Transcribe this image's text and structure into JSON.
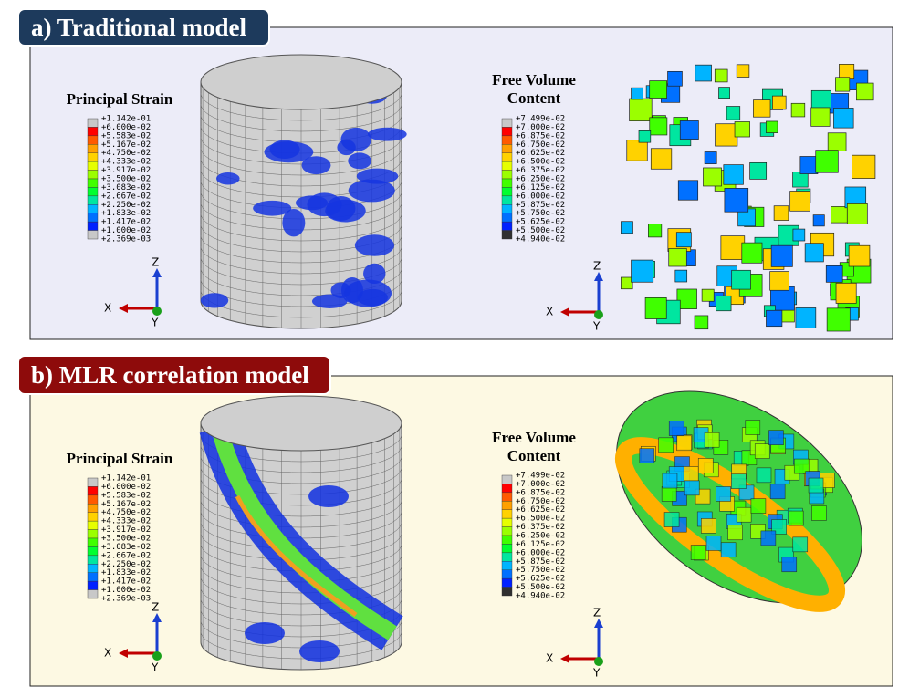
{
  "panels": [
    {
      "title": "a) Traditional model",
      "strain_legend": {
        "title": "Principal Strain",
        "labels": [
          "+1.142e-01",
          "+6.000e-02",
          "+5.583e-02",
          "+5.167e-02",
          "+4.750e-02",
          "+4.333e-02",
          "+3.917e-02",
          "+3.500e-02",
          "+3.083e-02",
          "+2.667e-02",
          "+2.250e-02",
          "+1.833e-02",
          "+1.417e-02",
          "+1.000e-02",
          "+2.369e-03"
        ]
      },
      "volume_legend": {
        "title_lines": [
          "Free Volume",
          "Content"
        ],
        "labels": [
          "+7.499e-02",
          "+7.000e-02",
          "+6.875e-02",
          "+6.750e-02",
          "+6.625e-02",
          "+6.500e-02",
          "+6.375e-02",
          "+6.250e-02",
          "+6.125e-02",
          "+6.000e-02",
          "+5.875e-02",
          "+5.750e-02",
          "+5.625e-02",
          "+5.500e-02",
          "+4.940e-02"
        ]
      },
      "triad": {
        "x": "X",
        "y": "Y",
        "z": "Z"
      }
    },
    {
      "title": "b) MLR correlation model",
      "strain_legend": {
        "title": "Principal Strain",
        "labels": [
          "+1.142e-01",
          "+6.000e-02",
          "+5.583e-02",
          "+5.167e-02",
          "+4.750e-02",
          "+4.333e-02",
          "+3.917e-02",
          "+3.500e-02",
          "+3.083e-02",
          "+2.667e-02",
          "+2.250e-02",
          "+1.833e-02",
          "+1.417e-02",
          "+1.000e-02",
          "+2.369e-03"
        ]
      },
      "volume_legend": {
        "title_lines": [
          "Free Volume",
          "Content"
        ],
        "labels": [
          "+7.499e-02",
          "+7.000e-02",
          "+6.875e-02",
          "+6.750e-02",
          "+6.625e-02",
          "+6.500e-02",
          "+6.375e-02",
          "+6.250e-02",
          "+6.125e-02",
          "+6.000e-02",
          "+5.875e-02",
          "+5.750e-02",
          "+5.625e-02",
          "+5.500e-02",
          "+4.940e-02"
        ]
      },
      "triad": {
        "x": "X",
        "y": "Y",
        "z": "Z"
      }
    }
  ]
}
